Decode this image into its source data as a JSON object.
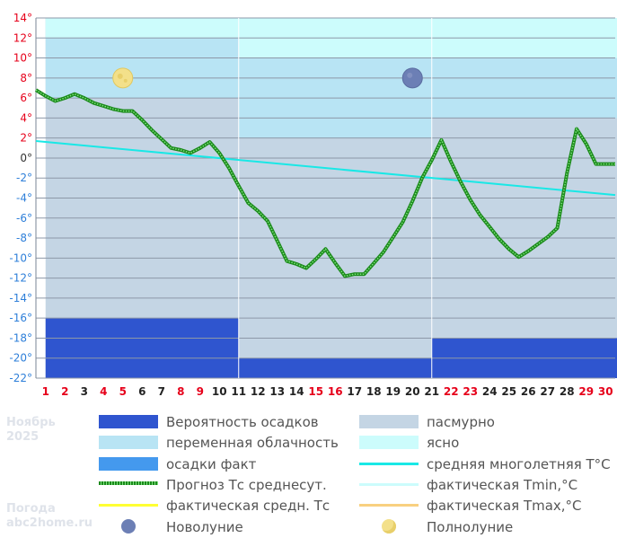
{
  "chart_data": {
    "type": "line",
    "title": "",
    "xlabel": "",
    "ylabel": "",
    "ylim": [
      -22,
      14
    ],
    "y_ticks": [
      14,
      12,
      10,
      8,
      6,
      4,
      2,
      0,
      -2,
      -4,
      -6,
      -8,
      -10,
      -12,
      -14,
      -16,
      -18,
      -20,
      -22
    ],
    "y_tick_colors": {
      "positive": "#e6001a",
      "zero": "#333333",
      "negative": "#2e7fd9"
    },
    "days": [
      1,
      2,
      3,
      4,
      5,
      6,
      7,
      8,
      9,
      10,
      11,
      12,
      13,
      14,
      15,
      16,
      17,
      18,
      19,
      20,
      21,
      22,
      23,
      24,
      25,
      26,
      27,
      28,
      29,
      30
    ],
    "red_days": [
      1,
      2,
      4,
      5,
      8,
      9,
      15,
      16,
      22,
      23,
      29,
      30
    ],
    "periods": [
      {
        "days": [
          1,
          10
        ],
        "cloud_variable_from": 6,
        "clear_from": 12,
        "precip_prob_to": -16
      },
      {
        "days": [
          11,
          20
        ],
        "cloud_variable_from": 2,
        "clear_from": 10,
        "precip_prob_to": -20
      },
      {
        "days": [
          21,
          30
        ],
        "cloud_variable_from": 4,
        "clear_from": 10,
        "precip_prob_to": -18
      }
    ],
    "series": [
      {
        "name": "Прогноз Тс среднесут.",
        "x": [
          0.5,
          1.0,
          1.5,
          2.0,
          2.5,
          3.0,
          3.5,
          4.0,
          4.5,
          5.0,
          5.5,
          6.0,
          6.5,
          7.0,
          7.5,
          8.0,
          8.5,
          9.0,
          9.5,
          10.0,
          10.5,
          11.0,
          11.5,
          12.0,
          12.5,
          13.0,
          13.5,
          14.0,
          14.5,
          15.0,
          15.5,
          16.0,
          16.5,
          17.0,
          17.5,
          18.0,
          18.5,
          19.0,
          19.5,
          20.0,
          20.5,
          21.0,
          21.5,
          22.0,
          22.5,
          23.0,
          23.5,
          24.0,
          24.5,
          25.0,
          25.5,
          26.0,
          26.5,
          27.0,
          27.5,
          28.0,
          28.5,
          29.0,
          29.5,
          30.0,
          30.5
        ],
        "values": [
          6.8,
          6.2,
          5.7,
          6.0,
          6.4,
          6.0,
          5.5,
          5.2,
          4.9,
          4.7,
          4.7,
          3.8,
          2.8,
          1.9,
          1.0,
          0.8,
          0.5,
          1.0,
          1.6,
          0.5,
          -1.0,
          -2.8,
          -4.5,
          -5.3,
          -6.3,
          -8.3,
          -10.3,
          -10.6,
          -11.0,
          -10.1,
          -9.1,
          -10.5,
          -11.8,
          -11.6,
          -11.6,
          -10.5,
          -9.4,
          -7.9,
          -6.4,
          -4.3,
          -2.0,
          -0.2,
          1.8,
          -0.4,
          -2.4,
          -4.2,
          -5.7,
          -6.9,
          -8.1,
          -9.1,
          -9.9,
          -9.3,
          -8.6,
          -7.9,
          -7.0,
          -1.5,
          2.9,
          1.4,
          -0.6,
          -0.6,
          -0.6
        ]
      },
      {
        "name": "средняя многолетняя Т°C",
        "x": [
          0.5,
          30.5
        ],
        "values": [
          1.7,
          -3.7
        ]
      }
    ],
    "moon_phases": [
      {
        "label": "Полнолуние",
        "day": 5,
        "y": 8
      },
      {
        "label": "Новолуние",
        "day": 20,
        "y": 8
      }
    ]
  },
  "watermark": {
    "month": "Ноябрь",
    "year": "2025",
    "site1": "Погода",
    "site2": "abc2home.ru"
  },
  "legend": {
    "items": [
      {
        "label": "Вероятность осадков",
        "kind": "box",
        "color": "#2f55cf"
      },
      {
        "label": "пасмурно",
        "kind": "box",
        "color": "#c4d5e4"
      },
      {
        "label": "переменная облачность",
        "kind": "box",
        "color": "#b8e4f4"
      },
      {
        "label": "ясно",
        "kind": "box",
        "color": "#ccfcfc"
      },
      {
        "label": "осадки факт",
        "kind": "box",
        "color": "#4499ee"
      },
      {
        "label": "средняя многолетняя T°C",
        "kind": "line",
        "color": "#19e8e6"
      },
      {
        "label": "Прогноз Тс среднесут.",
        "kind": "dotted",
        "color": "#1a8a1a"
      },
      {
        "label": "фактическая Tmin,°C",
        "kind": "line",
        "color": "#ccfcfc"
      },
      {
        "label": "фактическая средн. Тс",
        "kind": "line",
        "color": "#ffff33"
      },
      {
        "label": "фактическая Tmax,°C",
        "kind": "line",
        "color": "#f8d080"
      },
      {
        "label": "Новолуние",
        "kind": "newmoon",
        "color": "#6c7fb5"
      },
      {
        "label": "Полнолуние",
        "kind": "fullmoon",
        "color": "#f3e08a"
      }
    ]
  },
  "colors": {
    "overcast": "#c4d5e4",
    "variable": "#b8e4f4",
    "clear": "#ccfcfc",
    "precip": "#2f55cf",
    "grid": "#8d98a8",
    "avg_line": "#19e8e6",
    "forecast_line": "#1a8a1a",
    "forecast_dots": "#7fe07f"
  }
}
